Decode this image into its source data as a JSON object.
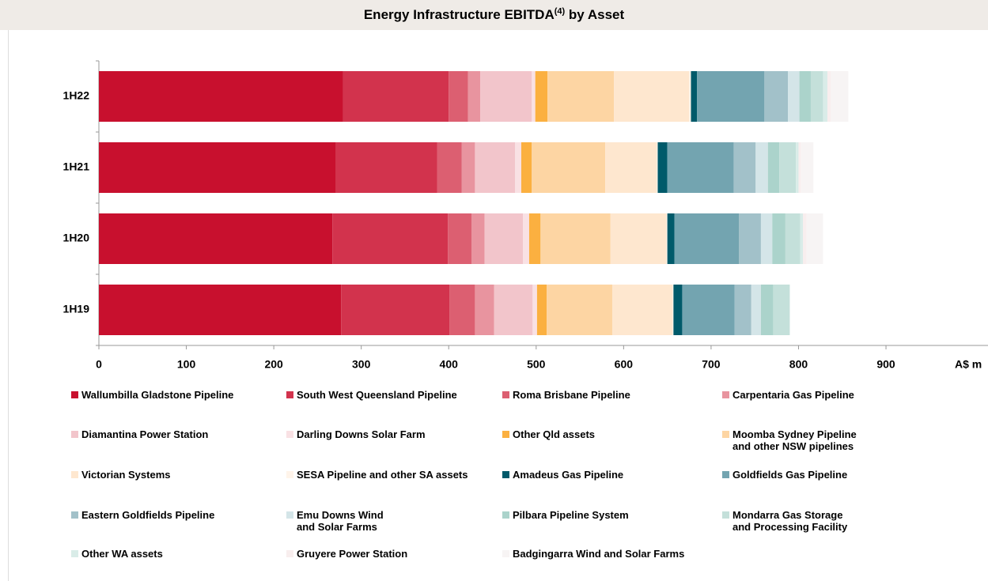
{
  "chart_data": {
    "type": "stacked-bar-horizontal",
    "title": {
      "text": "Energy Infrastructure EBITDA",
      "superscript": "(4)",
      "rest": " by Asset"
    },
    "x_label": "A$ m",
    "categories": [
      "1H22",
      "1H21",
      "1H20",
      "1H19"
    ],
    "xlim": [
      0,
      1010
    ],
    "xticks": [
      0,
      100,
      200,
      300,
      400,
      500,
      600,
      700,
      800,
      900
    ],
    "series": [
      {
        "name": "Wallumbilla Gladstone Pipeline",
        "color": "#c8102e",
        "values": [
          279,
          271,
          267,
          277
        ]
      },
      {
        "name": "South West Queensland Pipeline",
        "color": "#d2334d",
        "values": [
          121,
          116,
          132,
          124
        ]
      },
      {
        "name": "Roma Brisbane Pipeline",
        "color": "#dc5f71",
        "values": [
          22,
          28,
          27,
          29
        ]
      },
      {
        "name": "Carpentaria Gas Pipeline",
        "color": "#e8949f",
        "values": [
          14,
          15,
          15,
          22
        ]
      },
      {
        "name": "Diamantina Power Station",
        "color": "#f2c5cb",
        "values": [
          59,
          46,
          44,
          44
        ]
      },
      {
        "name": "Darling Downs Solar Farm",
        "color": "#f9e1e4",
        "values": [
          4,
          7,
          7,
          5
        ]
      },
      {
        "name": "Other Qld assets",
        "color": "#fbb040",
        "values": [
          14,
          12,
          13,
          11
        ]
      },
      {
        "name": "Moomba Sydney Pipeline\nand other NSW pipelines",
        "color": "#fdd5a3",
        "values": [
          76,
          84,
          80,
          75
        ]
      },
      {
        "name": "Victorian Systems",
        "color": "#fee7cf",
        "values": [
          86,
          59,
          64,
          69
        ]
      },
      {
        "name": "SESA Pipeline and other SA assets",
        "color": "#fff4ea",
        "values": [
          2,
          1,
          1,
          1
        ]
      },
      {
        "name": "Amadeus Gas Pipeline",
        "color": "#005a6a",
        "values": [
          7,
          11,
          8,
          10
        ]
      },
      {
        "name": "Goldfields Gas Pipeline",
        "color": "#73a4b0",
        "values": [
          77,
          76,
          74,
          60
        ]
      },
      {
        "name": "Eastern Goldfields Pipeline",
        "color": "#a2c1c9",
        "values": [
          27,
          25,
          25,
          19
        ]
      },
      {
        "name": "Emu Downs Wind\nand Solar Farms",
        "color": "#d4e5e8",
        "values": [
          13,
          14,
          13,
          11
        ]
      },
      {
        "name": "Pilbara Pipeline System",
        "color": "#abd3cb",
        "values": [
          13,
          13,
          15,
          14
        ]
      },
      {
        "name": "Mondarra Gas Storage\nand Processing Facility",
        "color": "#c4e0da",
        "values": [
          14,
          19,
          17,
          19
        ]
      },
      {
        "name": "Other WA assets",
        "color": "#d9ece8",
        "values": [
          5,
          3,
          3,
          0
        ]
      },
      {
        "name": "Gruyere Power Station",
        "color": "#f8eeee",
        "values": [
          4,
          3,
          4,
          0
        ]
      },
      {
        "name": "Badgingarra Wind and Solar Farms",
        "color": "#f7f4f4",
        "values": [
          20,
          14,
          19,
          0
        ]
      }
    ]
  }
}
